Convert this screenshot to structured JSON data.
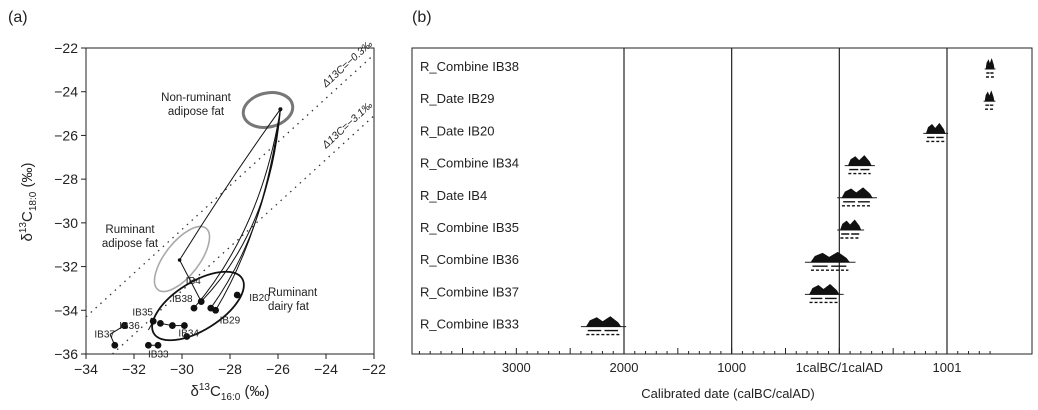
{
  "chart_data": [
    {
      "panel_label": "(a)",
      "type": "scatter",
      "xlabel": "δ13C16:0 (‰)",
      "ylabel": "δ13C18:0 (‰)",
      "xlim": [
        -34,
        -22
      ],
      "ylim": [
        -36,
        -22
      ],
      "xticks": [
        -34,
        -32,
        -30,
        -28,
        -26,
        -24,
        -22
      ],
      "yticks": [
        -36,
        -34,
        -32,
        -30,
        -28,
        -26,
        -24,
        -22
      ],
      "grid": false,
      "reference_lines": [
        {
          "label": "Δ13C=−0.3‰",
          "offset": -0.3
        },
        {
          "label": "Δ13C=−3.1‰",
          "offset": -3.1
        }
      ],
      "regions": [
        {
          "label": "Non-ruminant adipose fat",
          "color": "#777777"
        },
        {
          "label": "Ruminant adipose fat",
          "color": "#aaaaaa"
        },
        {
          "label": "Ruminant dairy fat",
          "color": "#111111"
        }
      ],
      "points": [
        {
          "label": "IB37",
          "x": -32.4,
          "y": -34.7
        },
        {
          "label": "IB36",
          "x": -31.2,
          "y": -34.5
        },
        {
          "label": "IB35",
          "x": -30.9,
          "y": -34.6
        },
        {
          "label": "IB33",
          "x": -31.0,
          "y": -35.6
        },
        {
          "label": "IB34",
          "x": -29.9,
          "y": -34.7
        },
        {
          "label": "IB38",
          "x": -29.5,
          "y": -33.9
        },
        {
          "label": "IB4",
          "x": -28.8,
          "y": -33.9
        },
        {
          "label": "IB29",
          "x": -28.6,
          "y": -34.0
        },
        {
          "label": "IB20",
          "x": -27.7,
          "y": -33.3
        }
      ],
      "extra_points": [
        {
          "x": -32.8,
          "y": -35.6
        },
        {
          "x": -31.4,
          "y": -35.6
        },
        {
          "x": -30.4,
          "y": -34.7
        },
        {
          "x": -29.8,
          "y": -35.2
        },
        {
          "x": -29.2,
          "y": -33.6
        }
      ]
    },
    {
      "panel_label": "(b)",
      "type": "range",
      "xlabel": "Calibrated date (calBC/calAD)",
      "tick_labels": [
        "3000",
        "2000",
        "1000",
        "1calBC/1calAD",
        "1001"
      ],
      "rows": [
        {
          "label": "R_Combine IB38",
          "start": 1350,
          "end": 1450
        },
        {
          "label": "R_Date IB29",
          "start": 1340,
          "end": 1450
        },
        {
          "label": "R_Date IB20",
          "start": 780,
          "end": 1010
        },
        {
          "label": "R_Combine IB34",
          "start": 50,
          "end": 330
        },
        {
          "label": "R_Date IB4",
          "start": -20,
          "end": 350
        },
        {
          "label": "R_Combine IB35",
          "start": -20,
          "end": 230
        },
        {
          "label": "R_Combine IB36",
          "start": -320,
          "end": 150
        },
        {
          "label": "R_Combine IB37",
          "start": -320,
          "end": 40
        },
        {
          "label": "R_Combine IB33",
          "start": -2400,
          "end": -1980
        }
      ]
    }
  ]
}
